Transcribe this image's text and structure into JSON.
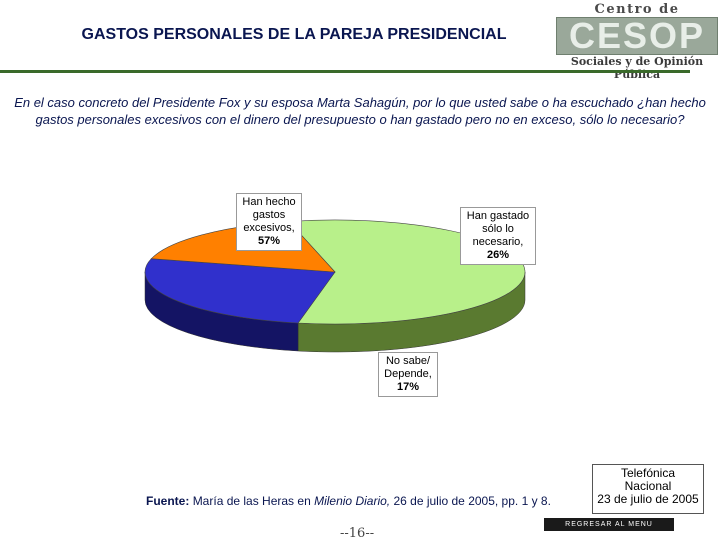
{
  "header": {
    "title": "GASTOS PERSONALES DE LA PAREJA PRESIDENCIAL",
    "logo_top": "Centro de Estudios",
    "logo_mark": "CESOP",
    "logo_bottom": "Sociales y de Opinión Pública"
  },
  "question": "En el caso concreto del Presidente Fox y su esposa Marta Sahagún, por lo que usted sabe o ha escuchado ¿han hecho gastos personales excesivos con el dinero del presupuesto o han gastado pero no en exceso, sólo lo necesario?",
  "chart_data": {
    "type": "pie",
    "title": "",
    "slices": [
      {
        "label": "Han hecho gastos excesivos,",
        "pct": "57%",
        "value": 57,
        "color": "#b8f08a",
        "side": "#5a7a30"
      },
      {
        "label": "Han gastado sólo lo necesario,",
        "pct": "26%",
        "value": 26,
        "color": "#3030cc",
        "side": "#141464"
      },
      {
        "label": "No sabe/ Depende,",
        "pct": "17%",
        "value": 17,
        "color": "#ff8000",
        "side": "#7a3a00"
      }
    ]
  },
  "source": {
    "head": "Fuente:",
    "text": "María de las Heras en",
    "publication": "Milenio Diario,",
    "tail": "26  de julio de 2005, pp. 1 y 8."
  },
  "poll": {
    "line1": "Telefónica",
    "line2": "Nacional",
    "line3": "23 de julio de 2005"
  },
  "footer": {
    "page": "--16--",
    "back_label": "REGRESAR AL MENU PRINCIPAL"
  }
}
